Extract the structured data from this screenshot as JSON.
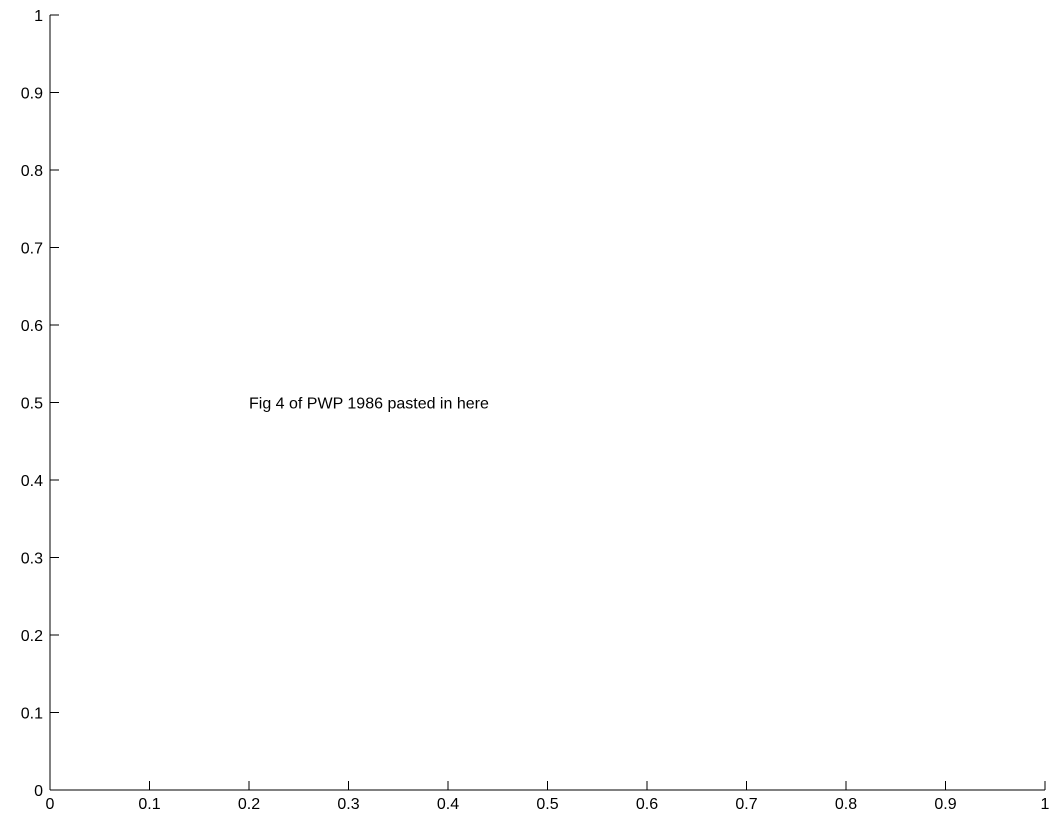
{
  "chart_data": {
    "type": "scatter",
    "title": "",
    "xlabel": "",
    "ylabel": "",
    "xlim": [
      0,
      1
    ],
    "ylim": [
      0,
      1
    ],
    "xticks": [
      "0",
      "0.1",
      "0.2",
      "0.3",
      "0.4",
      "0.5",
      "0.6",
      "0.7",
      "0.8",
      "0.9",
      "1"
    ],
    "yticks": [
      "0",
      "0.1",
      "0.2",
      "0.3",
      "0.4",
      "0.5",
      "0.6",
      "0.7",
      "0.8",
      "0.9",
      "1"
    ],
    "grid": false,
    "series": [],
    "annotations": [
      {
        "text": "Fig 4 of PWP 1986 pasted in here",
        "x": 0.2,
        "y": 0.5
      }
    ]
  }
}
